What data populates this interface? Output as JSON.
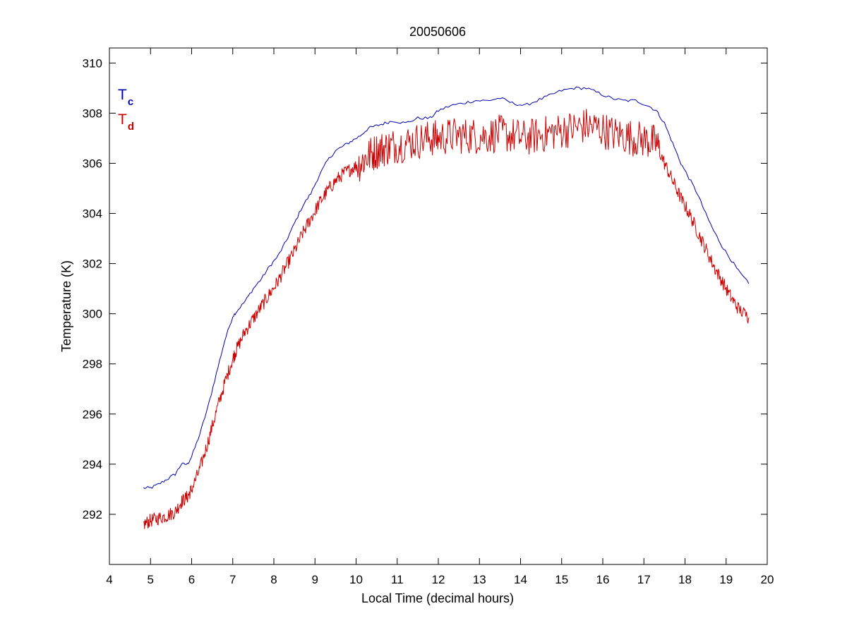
{
  "chart_data": {
    "type": "line",
    "title": "20050606",
    "xlabel": "Local Time (decimal hours)",
    "ylabel": "Temperature (K)",
    "xlim": [
      4,
      20
    ],
    "ylim": [
      290,
      310.6
    ],
    "xticks": [
      4,
      5,
      6,
      7,
      8,
      9,
      10,
      11,
      12,
      13,
      14,
      15,
      16,
      17,
      18,
      19,
      20
    ],
    "yticks": [
      292,
      294,
      296,
      298,
      300,
      302,
      304,
      306,
      308,
      310
    ],
    "grid": false,
    "legend_position": "top-left",
    "series": [
      {
        "name": "T",
        "subscript": "c",
        "color": "#0000aa",
        "noisy": false,
        "x": [
          4.83,
          5.0,
          5.2,
          5.4,
          5.6,
          5.75,
          5.9,
          6.0,
          6.2,
          6.4,
          6.6,
          6.8,
          7.0,
          7.1,
          7.3,
          7.5,
          7.7,
          7.9,
          8.1,
          8.3,
          8.5,
          8.7,
          8.9,
          9.1,
          9.3,
          9.5,
          9.7,
          9.9,
          10.1,
          10.3,
          10.5,
          10.7,
          10.9,
          11.2,
          11.5,
          11.8,
          12.0,
          12.3,
          12.6,
          12.9,
          13.2,
          13.5,
          13.8,
          14.1,
          14.4,
          14.7,
          15.0,
          15.3,
          15.6,
          15.9,
          16.2,
          16.5,
          16.8,
          17.1,
          17.3,
          17.5,
          17.7,
          17.9,
          18.1,
          18.3,
          18.5,
          18.7,
          18.9,
          19.1,
          19.3,
          19.55
        ],
        "y": [
          293.05,
          293.05,
          293.2,
          293.4,
          293.6,
          294.0,
          294.0,
          294.3,
          295.2,
          296.3,
          297.6,
          298.9,
          299.9,
          300.1,
          300.5,
          301.0,
          301.4,
          301.9,
          302.3,
          302.9,
          303.6,
          304.3,
          304.8,
          305.5,
          306.1,
          306.5,
          306.7,
          306.9,
          307.1,
          307.4,
          307.5,
          307.6,
          307.7,
          307.6,
          307.8,
          307.8,
          308.1,
          308.3,
          308.4,
          308.5,
          308.5,
          308.6,
          308.4,
          308.3,
          308.5,
          308.7,
          308.9,
          309.0,
          309.0,
          308.8,
          308.6,
          308.5,
          308.5,
          308.3,
          308.1,
          307.6,
          306.8,
          306.0,
          305.4,
          304.8,
          304.0,
          303.3,
          302.7,
          302.2,
          301.7,
          301.2
        ]
      },
      {
        "name": "T",
        "subscript": "d",
        "color": "#cc0000",
        "noisy": true,
        "x": [
          4.83,
          5.0,
          5.2,
          5.4,
          5.6,
          5.75,
          5.9,
          6.0,
          6.2,
          6.4,
          6.6,
          6.8,
          7.0,
          7.1,
          7.3,
          7.5,
          7.7,
          7.9,
          8.1,
          8.3,
          8.5,
          8.7,
          8.9,
          9.1,
          9.3,
          9.5,
          9.7,
          9.9,
          10.1,
          10.3,
          10.5,
          10.7,
          10.9,
          11.2,
          11.5,
          11.8,
          12.0,
          12.3,
          12.6,
          12.9,
          13.2,
          13.5,
          13.8,
          14.1,
          14.4,
          14.7,
          15.0,
          15.3,
          15.6,
          15.9,
          16.2,
          16.5,
          16.8,
          17.1,
          17.3,
          17.5,
          17.7,
          17.9,
          18.1,
          18.3,
          18.5,
          18.7,
          18.9,
          19.1,
          19.3,
          19.55
        ],
        "y": [
          291.6,
          291.75,
          291.85,
          291.95,
          292.1,
          292.5,
          292.7,
          293.0,
          293.8,
          294.9,
          296.1,
          297.2,
          298.2,
          298.6,
          299.3,
          299.8,
          300.3,
          300.8,
          301.3,
          301.9,
          302.5,
          303.2,
          303.8,
          304.4,
          304.9,
          305.3,
          305.6,
          305.8,
          306.0,
          306.3,
          306.5,
          306.6,
          306.7,
          306.8,
          306.9,
          307.0,
          307.0,
          307.1,
          307.1,
          307.1,
          307.1,
          307.2,
          307.1,
          307.0,
          307.1,
          307.2,
          307.3,
          307.4,
          307.5,
          307.4,
          307.2,
          307.1,
          307.0,
          306.9,
          306.8,
          306.0,
          305.3,
          304.6,
          304.0,
          303.3,
          302.6,
          301.9,
          301.3,
          300.7,
          300.2,
          299.85
        ]
      }
    ]
  }
}
